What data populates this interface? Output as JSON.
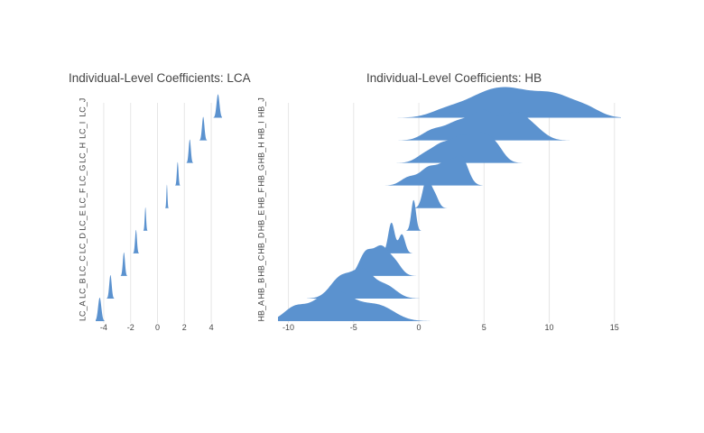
{
  "colors": {
    "ridge": "#5b92cf",
    "grid": "#e6e6e6",
    "text": "#444444"
  },
  "chart_data": [
    {
      "type": "ridgeline",
      "title": "Individual-Level Coefficients: LCA",
      "xlabel": "",
      "ylabel": "",
      "xlim": [
        -4.6,
        4.8
      ],
      "x_ticks": [
        -4,
        -2,
        0,
        2,
        4
      ],
      "x_tick_labels": [
        "-4",
        "-2",
        "0",
        "2",
        "4"
      ],
      "grid": true,
      "categories": [
        "LC_A",
        "LC_B",
        "LC_C",
        "LC_D",
        "LC_E",
        "LC_F",
        "LC_G",
        "LC_H",
        "LC_I",
        "LC_J"
      ],
      "series": [
        {
          "peaks": [
            [
              -4.3,
              0.12,
              1.0
            ]
          ]
        },
        {
          "peaks": [
            [
              -3.5,
              0.09,
              1.0
            ]
          ]
        },
        {
          "peaks": [
            [
              -2.5,
              0.08,
              1.0
            ]
          ]
        },
        {
          "peaks": [
            [
              -1.6,
              0.07,
              1.0
            ]
          ]
        },
        {
          "peaks": [
            [
              -0.9,
              0.05,
              1.0
            ]
          ]
        },
        {
          "peaks": [
            [
              0.7,
              0.04,
              1.0
            ]
          ]
        },
        {
          "peaks": [
            [
              1.5,
              0.06,
              1.0
            ]
          ]
        },
        {
          "peaks": [
            [
              2.4,
              0.08,
              1.0
            ]
          ]
        },
        {
          "peaks": [
            [
              3.4,
              0.09,
              1.0
            ]
          ]
        },
        {
          "peaks": [
            [
              4.5,
              0.11,
              1.0
            ]
          ]
        }
      ]
    },
    {
      "type": "ridgeline",
      "title": "Individual-Level Coefficients: HB",
      "xlabel": "",
      "ylabel": "",
      "xlim": [
        -10.8,
        15.5
      ],
      "x_ticks": [
        -10,
        -5,
        0,
        5,
        10,
        15
      ],
      "x_tick_labels": [
        "-10",
        "-5",
        "0",
        "5",
        "10",
        "15"
      ],
      "grid": true,
      "categories": [
        "HB_A",
        "HB_B",
        "HB_C",
        "HB_D",
        "HB_E",
        "HB_F",
        "HB_G",
        "HB_H",
        "HB_I",
        "HB_J"
      ],
      "series": [
        {
          "peaks": [
            [
              -9.6,
              0.8,
              0.35
            ],
            [
              -6.5,
              1.6,
              1.0
            ],
            [
              -3.0,
              1.2,
              0.45
            ]
          ]
        },
        {
          "peaks": [
            [
              -6.0,
              0.8,
              0.75
            ],
            [
              -4.3,
              0.8,
              1.0
            ],
            [
              -2.5,
              0.8,
              0.45
            ]
          ]
        },
        {
          "peaks": [
            [
              -4.1,
              0.5,
              0.75
            ],
            [
              -2.9,
              0.6,
              1.0
            ],
            [
              -1.8,
              0.5,
              0.4
            ]
          ]
        },
        {
          "peaks": [
            [
              -2.1,
              0.25,
              1.0
            ],
            [
              -1.3,
              0.25,
              0.62
            ]
          ]
        },
        {
          "peaks": [
            [
              -0.4,
              0.18,
              1.0
            ]
          ]
        },
        {
          "peaks": [
            [
              0.6,
              0.3,
              1.0
            ],
            [
              1.2,
              0.3,
              0.45
            ]
          ]
        },
        {
          "peaks": [
            [
              -0.8,
              0.6,
              0.3
            ],
            [
              0.8,
              0.7,
              0.7
            ],
            [
              2.2,
              0.6,
              0.8
            ],
            [
              3.3,
              0.5,
              1.0
            ]
          ]
        },
        {
          "peaks": [
            [
              0.5,
              0.7,
              0.3
            ],
            [
              1.8,
              0.7,
              0.6
            ],
            [
              3.2,
              0.7,
              0.8
            ],
            [
              4.8,
              0.8,
              1.0
            ],
            [
              6.0,
              0.6,
              0.4
            ]
          ]
        },
        {
          "peaks": [
            [
              1.0,
              0.8,
              0.3
            ],
            [
              3.0,
              1.0,
              0.6
            ],
            [
              5.0,
              0.9,
              0.9
            ],
            [
              7.4,
              1.0,
              0.9
            ],
            [
              9.0,
              0.8,
              0.25
            ]
          ]
        },
        {
          "peaks": [
            [
              2.0,
              1.2,
              0.25
            ],
            [
              4.5,
              1.6,
              0.55
            ],
            [
              7.0,
              1.8,
              1.0
            ],
            [
              10.5,
              1.6,
              0.85
            ],
            [
              13.0,
              1.0,
              0.25
            ]
          ]
        }
      ]
    }
  ]
}
